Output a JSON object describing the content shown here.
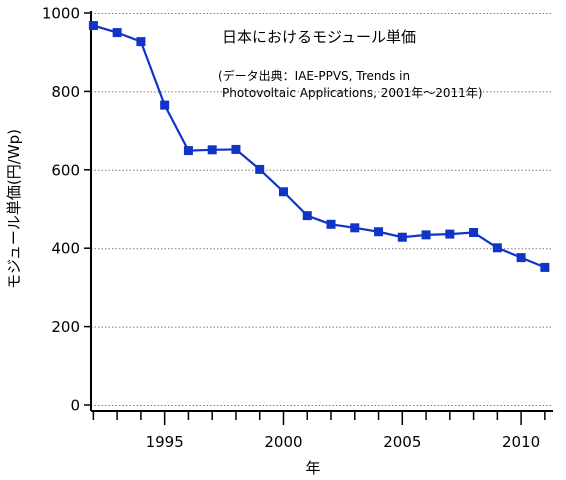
{
  "colors": {
    "series": "#1034c8",
    "axis": "#000000",
    "grid": "#7a7a7a",
    "background": "#ffffff"
  },
  "chart_data": {
    "type": "line",
    "title": "日本におけるモジュール単価",
    "subtitle_line1": "(データ出典：IAE-PPVS, Trends in",
    "subtitle_line2": "Photovoltaic Applications, 2001年～2011年)",
    "xlabel": "年",
    "ylabel": "モジュール単価(円/Wp)",
    "xlim": [
      1991.9,
      2011.3
    ],
    "ylim": [
      0,
      1000
    ],
    "x_minor_ticks": [
      1992,
      1993,
      1994,
      1995,
      1996,
      1997,
      1998,
      1999,
      2000,
      2001,
      2002,
      2003,
      2004,
      2005,
      2006,
      2007,
      2008,
      2009,
      2010,
      2011
    ],
    "x_tick_labels": [
      "1995",
      "2000",
      "2005",
      "2010"
    ],
    "y_ticks": [
      0,
      200,
      400,
      600,
      800,
      1000
    ],
    "y_tick_labels": [
      "0",
      "200",
      "400",
      "600",
      "800",
      "1000"
    ],
    "grid": "horizontal-dotted",
    "marker": "square",
    "x": [
      1992,
      1993,
      1994,
      1995,
      1996,
      1997,
      1998,
      1999,
      2000,
      2001,
      2002,
      2003,
      2004,
      2005,
      2006,
      2007,
      2008,
      2009,
      2010,
      2011
    ],
    "values": [
      968,
      950,
      927,
      765,
      649,
      651,
      652,
      601,
      544,
      483,
      461,
      452,
      442,
      428,
      434,
      436,
      440,
      401,
      376,
      351
    ]
  }
}
